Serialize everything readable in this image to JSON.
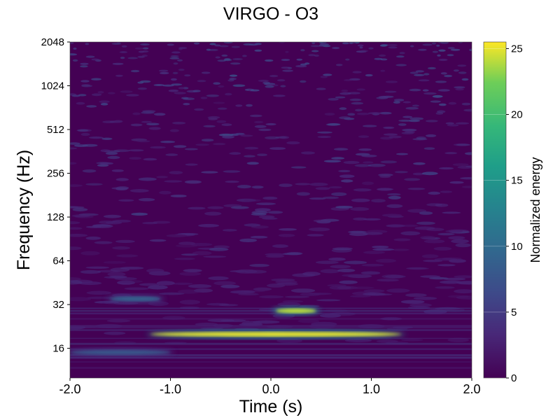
{
  "chart_data": {
    "type": "heatmap",
    "title": "VIRGO - O3",
    "xlabel": "Time (s)",
    "ylabel": "Frequency (Hz)",
    "xlim": [
      -2.0,
      2.0
    ],
    "ylim": [
      10,
      2048
    ],
    "y_scale": "log2",
    "x_ticks": [
      -2.0,
      -1.0,
      0.0,
      1.0,
      2.0
    ],
    "x_tick_labels": [
      "-2.0",
      "-1.0",
      "0.0",
      "1.0",
      "2.0"
    ],
    "y_ticks": [
      16,
      32,
      64,
      128,
      256,
      512,
      1024,
      2048
    ],
    "y_tick_labels": [
      "16",
      "32",
      "64",
      "128",
      "256",
      "512",
      "1024",
      "2048"
    ],
    "colormap": "viridis",
    "colorbar": {
      "label": "Normalized energy",
      "range": [
        0,
        25.5
      ],
      "ticks": [
        0,
        5,
        10,
        15,
        20,
        25
      ],
      "tick_labels": [
        "0",
        "5",
        "10",
        "15",
        "20",
        "25"
      ]
    },
    "features": [
      {
        "t_start": -1.2,
        "t_end": 1.3,
        "f": 20,
        "energy": 25
      },
      {
        "t_start": 0.05,
        "t_end": 0.45,
        "f": 29,
        "energy": 24
      },
      {
        "t_start": -1.6,
        "t_end": -1.1,
        "f": 35,
        "energy": 9
      },
      {
        "t_start": -2.0,
        "t_end": -1.0,
        "f": 15,
        "energy": 8
      }
    ]
  }
}
